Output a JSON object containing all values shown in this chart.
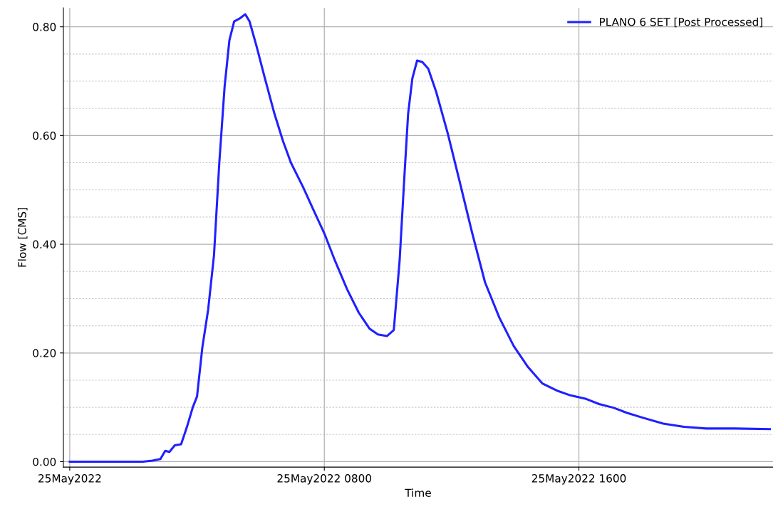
{
  "chart_data": {
    "type": "line",
    "xlabel": "Time",
    "ylabel": "Flow [CMS]",
    "xlim": [
      "2022-05-24T23:48",
      "2022-05-25T22:06"
    ],
    "xticks": [
      {
        "value": "2022-05-25T00:00",
        "label": "25May2022"
      },
      {
        "value": "2022-05-25T08:00",
        "label": "25May2022 0800"
      },
      {
        "value": "2022-05-25T16:00",
        "label": "25May2022 1600"
      }
    ],
    "ylim": [
      -0.01,
      0.835
    ],
    "yticks": [
      {
        "value": 0,
        "label": "0.00"
      },
      {
        "value": 0.2,
        "label": "0.20"
      },
      {
        "value": 0.4,
        "label": "0.40"
      },
      {
        "value": 0.6,
        "label": "0.60"
      },
      {
        "value": 0.8,
        "label": "0.80"
      }
    ],
    "grid": true,
    "legend": "top right",
    "marker": "none",
    "line_style": "solid",
    "series": [
      {
        "name": "PLANO 6 SET [Post Processed]",
        "color": "#2020ff",
        "x": [
          "2022-05-25T00:00",
          "2022-05-25T01:00",
          "2022-05-25T02:00",
          "2022-05-25T02:18",
          "2022-05-25T02:36",
          "2022-05-25T02:51",
          "2022-05-25T03:00",
          "2022-05-25T03:08",
          "2022-05-25T03:18",
          "2022-05-25T03:30",
          "2022-05-25T03:41",
          "2022-05-25T03:52",
          "2022-05-25T04:00",
          "2022-05-25T04:10",
          "2022-05-25T04:21",
          "2022-05-25T04:32",
          "2022-05-25T04:42",
          "2022-05-25T04:52",
          "2022-05-25T05:01",
          "2022-05-25T05:10",
          "2022-05-25T05:20",
          "2022-05-25T05:31",
          "2022-05-25T05:39",
          "2022-05-25T05:52",
          "2022-05-25T06:08",
          "2022-05-25T06:26",
          "2022-05-25T06:42",
          "2022-05-25T06:57",
          "2022-05-25T07:20",
          "2022-05-25T07:40",
          "2022-05-25T08:00",
          "2022-05-25T08:20",
          "2022-05-25T08:43",
          "2022-05-25T09:05",
          "2022-05-25T09:25",
          "2022-05-25T09:41",
          "2022-05-25T09:58",
          "2022-05-25T10:11",
          "2022-05-25T10:22",
          "2022-05-25T10:31",
          "2022-05-25T10:38",
          "2022-05-25T10:46",
          "2022-05-25T10:55",
          "2022-05-25T11:05",
          "2022-05-25T11:16",
          "2022-05-25T11:31",
          "2022-05-25T11:53",
          "2022-05-25T12:16",
          "2022-05-25T12:39",
          "2022-05-25T13:03",
          "2022-05-25T13:30",
          "2022-05-25T13:57",
          "2022-05-25T14:24",
          "2022-05-25T14:51",
          "2022-05-25T15:18",
          "2022-05-25T15:44",
          "2022-05-25T16:12",
          "2022-05-25T16:38",
          "2022-05-25T17:06",
          "2022-05-25T17:30",
          "2022-05-25T18:00",
          "2022-05-25T18:39",
          "2022-05-25T19:18",
          "2022-05-25T20:00",
          "2022-05-25T20:54",
          "2022-05-25T22:00"
        ],
        "values": [
          0,
          0,
          0,
          0,
          0.002,
          0.005,
          0.02,
          0.018,
          0.03,
          0.032,
          0.064,
          0.1,
          0.12,
          0.21,
          0.28,
          0.38,
          0.55,
          0.69,
          0.775,
          0.81,
          0.815,
          0.823,
          0.81,
          0.765,
          0.705,
          0.64,
          0.59,
          0.55,
          0.505,
          0.462,
          0.42,
          0.37,
          0.317,
          0.274,
          0.245,
          0.234,
          0.231,
          0.242,
          0.37,
          0.525,
          0.64,
          0.705,
          0.738,
          0.735,
          0.723,
          0.68,
          0.603,
          0.512,
          0.42,
          0.33,
          0.265,
          0.213,
          0.174,
          0.144,
          0.131,
          0.122,
          0.116,
          0.106,
          0.099,
          0.09,
          0.081,
          0.07,
          0.064,
          0.061,
          0.061,
          0.06
        ]
      }
    ]
  }
}
